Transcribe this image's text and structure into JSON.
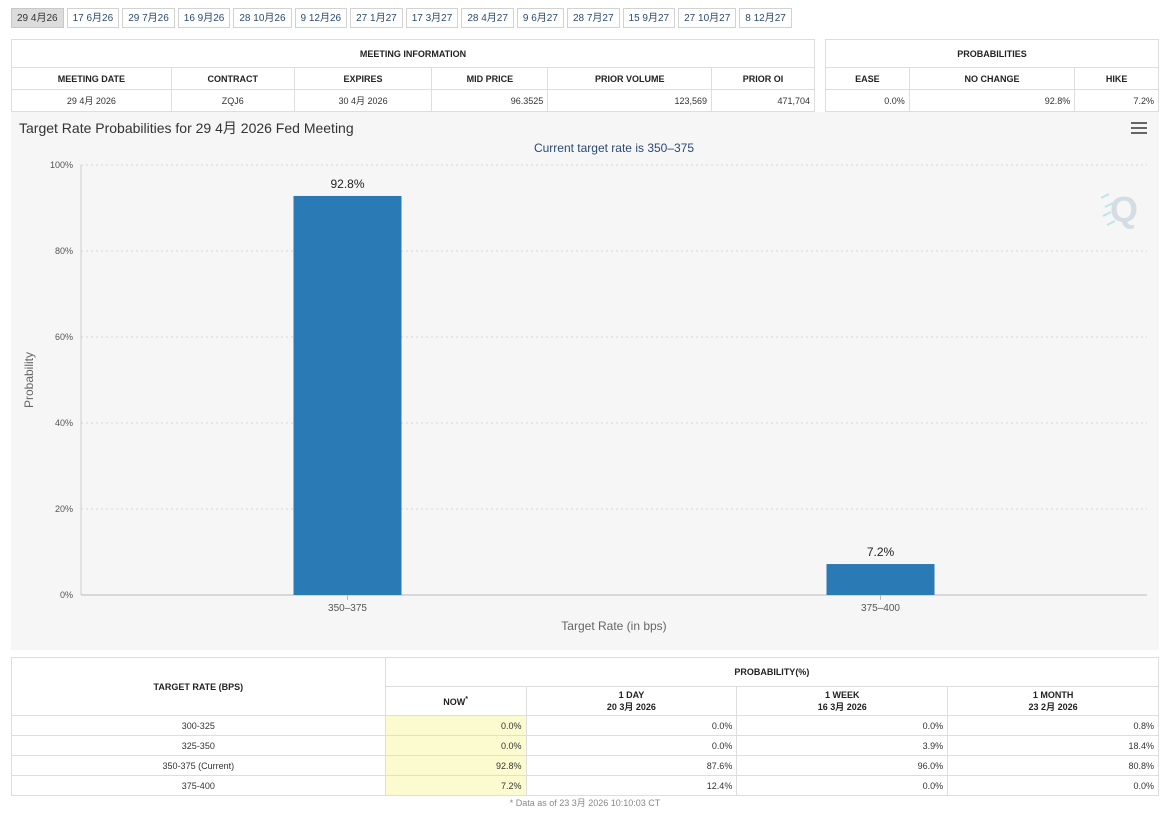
{
  "tabs": [
    "29 4月26",
    "17 6月26",
    "29 7月26",
    "16 9月26",
    "28 10月26",
    "9 12月26",
    "27 1月27",
    "17 3月27",
    "28 4月27",
    "9 6月27",
    "28 7月27",
    "15 9月27",
    "27 10月27",
    "8 12月27"
  ],
  "meeting_info": {
    "caption": "MEETING INFORMATION",
    "headers": [
      "MEETING DATE",
      "CONTRACT",
      "EXPIRES",
      "MID PRICE",
      "PRIOR VOLUME",
      "PRIOR OI"
    ],
    "row": [
      "29 4月 2026",
      "ZQJ6",
      "30 4月 2026",
      "96.3525",
      "123,569",
      "471,704"
    ]
  },
  "probabilities": {
    "caption": "PROBABILITIES",
    "headers": [
      "EASE",
      "NO CHANGE",
      "HIKE"
    ],
    "row": [
      "0.0%",
      "92.8%",
      "7.2%"
    ]
  },
  "chart_title": "Target Rate Probabilities for 29 4月 2026 Fed Meeting",
  "chart_menu_icon": "hamburger-menu-icon",
  "chart_data": {
    "type": "bar",
    "title": "Target Rate Probabilities for 29 4月 2026 Fed Meeting",
    "subtitle": "Current target rate is 350–375",
    "xlabel": "Target Rate (in bps)",
    "ylabel": "Probability",
    "categories": [
      "350–375",
      "375–400"
    ],
    "values": [
      92.8,
      7.2
    ],
    "data_labels": [
      "92.8%",
      "7.2%"
    ],
    "ylim": [
      0,
      100
    ],
    "yticks": [
      "0%",
      "20%",
      "40%",
      "60%",
      "80%",
      "100%"
    ],
    "grid": true,
    "bar_color": "#2a7ab6",
    "watermark": "Q"
  },
  "target_table": {
    "rate_header": "TARGET RATE (BPS)",
    "prob_header": "PROBABILITY(%)",
    "cols": [
      {
        "l1": "NOW",
        "l2": "",
        "sup": "*"
      },
      {
        "l1": "1 DAY",
        "l2": "20 3月 2026"
      },
      {
        "l1": "1 WEEK",
        "l2": "16 3月 2026"
      },
      {
        "l1": "1 MONTH",
        "l2": "23 2月 2026"
      }
    ],
    "rows": [
      {
        "rate": "300-325",
        "vals": [
          "0.0%",
          "0.0%",
          "0.0%",
          "0.8%"
        ]
      },
      {
        "rate": "325-350",
        "vals": [
          "0.0%",
          "0.0%",
          "3.9%",
          "18.4%"
        ]
      },
      {
        "rate": "350-375 (Current)",
        "vals": [
          "92.8%",
          "87.6%",
          "96.0%",
          "80.8%"
        ]
      },
      {
        "rate": "375-400",
        "vals": [
          "7.2%",
          "12.4%",
          "0.0%",
          "0.0%"
        ]
      }
    ],
    "footnote": "* Data as of 23 3月 2026 10:10:03 CT"
  },
  "colors": {
    "bar": "#2a7ab6",
    "now_cell": "#fbfbcf",
    "subtitle": "#2b4a6f"
  }
}
